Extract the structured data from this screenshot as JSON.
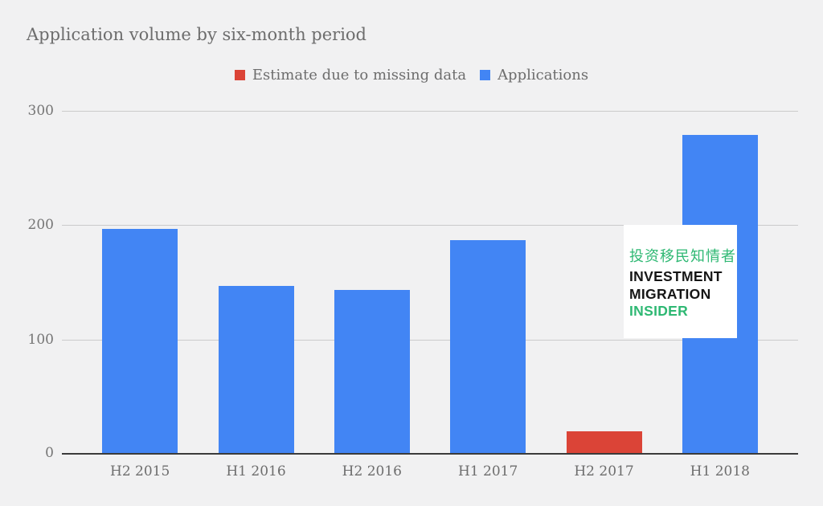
{
  "chart": {
    "title": "Application volume by six-month period"
  },
  "legend": {
    "items": [
      {
        "label": "Estimate due to missing data",
        "color": "#db4437"
      },
      {
        "label": "Applications",
        "color": "#4285f4"
      }
    ]
  },
  "chart_data": {
    "type": "bar",
    "title": "Application volume by six-month period",
    "xlabel": "",
    "ylabel": "",
    "categories": [
      "H2 2015",
      "H1 2016",
      "H2 2016",
      "H1 2017",
      "H2 2017",
      "H1 2018"
    ],
    "series": [
      {
        "name": "Applications",
        "color": "#4285f4",
        "values": [
          197,
          147,
          143,
          187,
          null,
          279
        ]
      },
      {
        "name": "Estimate due to missing data",
        "color": "#db4437",
        "values": [
          null,
          null,
          null,
          null,
          20,
          null
        ]
      }
    ],
    "ylim": [
      0,
      300
    ],
    "yticks": [
      0,
      100,
      200,
      300
    ],
    "grid": true,
    "legend_position": "top"
  },
  "watermark": {
    "line_cn": "投资移民知情者",
    "line1": "INVESTMENT",
    "line2": "MIGRATION",
    "line3": "INSIDER",
    "green": "#2eb873",
    "black": "#151515"
  },
  "colors": {
    "background": "#f1f1f2",
    "title_text": "#6d6d6d",
    "axis_text": "#757575",
    "gridline": "#cbcbcb",
    "axis_line": "#3b3b3b"
  }
}
